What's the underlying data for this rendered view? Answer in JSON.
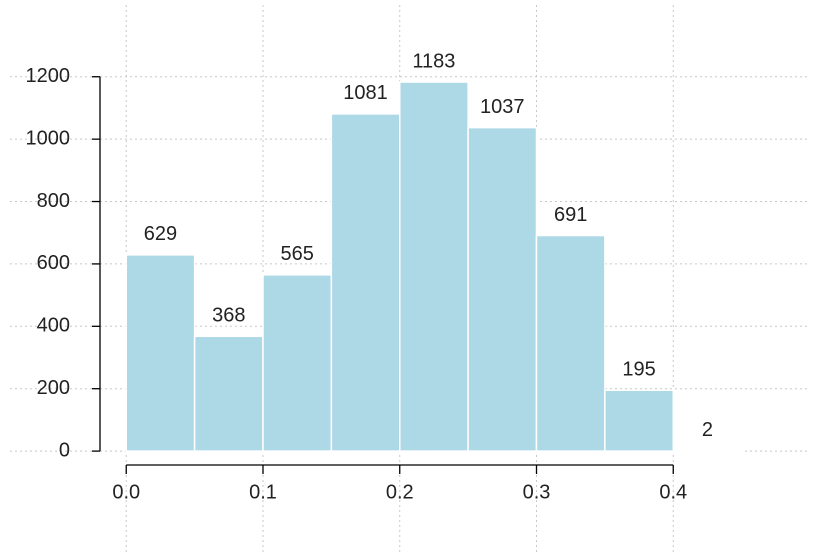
{
  "chart_data": {
    "type": "histogram",
    "bins": [
      0,
      0.05,
      0.1,
      0.15,
      0.2,
      0.25,
      0.3,
      0.35,
      0.4,
      0.45
    ],
    "values": [
      629,
      368,
      565,
      1081,
      1183,
      1037,
      691,
      195,
      2
    ],
    "color": "#add8e6",
    "xlim": [
      -0.085,
      0.5
    ],
    "ylim": [
      -285,
      1430
    ],
    "xticks": [
      {
        "value": 0,
        "label": "0.0"
      },
      0.1,
      0.2,
      0.3,
      0.4
    ],
    "yticks": [
      0,
      200,
      400,
      600,
      800,
      1000,
      1200
    ],
    "grid": true
  }
}
